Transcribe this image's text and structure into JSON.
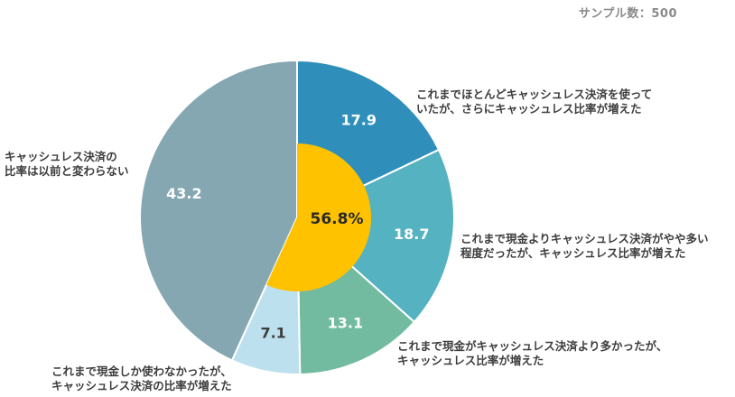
{
  "sample_label": "サンプル数：500",
  "colors": {
    "seg1": "#2f8fba",
    "seg2": "#55b2c0",
    "seg3": "#72bba1",
    "seg4": "#bde0ee",
    "seg5": "#84a7b2",
    "center": "#ffc200",
    "label_light": "#ffffff",
    "label_dark": "#3d3d3d"
  },
  "chart_data": {
    "type": "pie",
    "segments": [
      {
        "value": 17.9,
        "label": "17.9",
        "legend": [
          "これまでほとんどキャッシュレス決済を使って",
          "いたが、さらにキャッシュレス比率が増えた"
        ]
      },
      {
        "value": 18.7,
        "label": "18.7",
        "legend": [
          "これまで現金よりキャッシュレス決済がやや多い",
          "程度だったが、キャッシュレス比率が増えた"
        ]
      },
      {
        "value": 13.1,
        "label": "13.1",
        "legend": [
          "これまで現金がキャッシュレス決済より多かったが、",
          "キャッシュレス比率が増えた"
        ]
      },
      {
        "value": 7.1,
        "label": "7.1",
        "legend": [
          "これまで現金しか使わなかったが、",
          "キャッシュレス決済の比率が増えた"
        ]
      },
      {
        "value": 43.2,
        "label": "43.2",
        "legend": [
          "キャッシュレス決済の",
          "比率は以前と変わらない"
        ]
      }
    ],
    "center": {
      "value": 56.8,
      "label": "56.8%"
    }
  }
}
